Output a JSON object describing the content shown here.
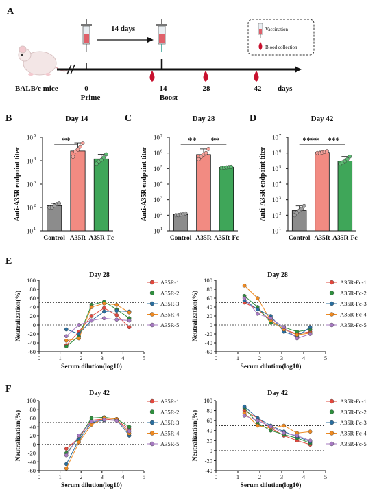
{
  "panel_a": {
    "letter": "A",
    "mouse_label": "BALB/c mice",
    "interval_label": "14 days",
    "days_unit": "days",
    "timepoints": [
      {
        "day": "0",
        "event": "Prime",
        "syringe": true,
        "blood": false
      },
      {
        "day": "14",
        "event": "Boost",
        "syringe": true,
        "blood": true
      },
      {
        "day": "28",
        "event": "",
        "syringe": false,
        "blood": true
      },
      {
        "day": "42",
        "event": "",
        "syringe": false,
        "blood": true
      }
    ],
    "pre_prime_blood": true,
    "legend": {
      "vaccination": "Vaccination",
      "blood": "Blood collection"
    }
  },
  "colors": {
    "control": "#8c8c8c",
    "a35r": "#f28b82",
    "a35rfc": "#3fa659",
    "s1": "#e2483d",
    "s2": "#2f8f3e",
    "s3": "#2a6e9e",
    "s4": "#ee8a22",
    "s5": "#a77ac2",
    "blood": "#c8102e"
  },
  "chart_data": [
    {
      "type": "bar",
      "panel": "B",
      "title": "Day 14",
      "ylabel": "Anti-A35R endpoint titer",
      "log_y": true,
      "ylim_exp": [
        1,
        5
      ],
      "ytick_labels": [
        "10",
        "10",
        "10",
        "10",
        "10"
      ],
      "ytick_exps": [
        "1",
        "2",
        "3",
        "4",
        "5"
      ],
      "categories": [
        "Control",
        "A35R",
        "A35R-Fc"
      ],
      "values": [
        120,
        26000,
        12000
      ],
      "points": [
        [
          100,
          100,
          120,
          140,
          150
        ],
        [
          15000,
          25000,
          30000,
          40000,
          58000
        ],
        [
          7500,
          9500,
          11000,
          14000,
          19000
        ]
      ],
      "significance": [
        {
          "from": 0,
          "to": 1,
          "label": "**"
        }
      ]
    },
    {
      "type": "bar",
      "panel": "C",
      "title": "Day 28",
      "ylabel": "Anti-A35R endpoint titer",
      "log_y": true,
      "ylim_exp": [
        1,
        7
      ],
      "ytick_labels": [
        "10",
        "10",
        "10",
        "10",
        "10",
        "10",
        "10"
      ],
      "ytick_exps": [
        "1",
        "2",
        "3",
        "4",
        "5",
        "6",
        "7"
      ],
      "categories": [
        "Control",
        "A35R",
        "A35R-Fc"
      ],
      "values": [
        110,
        800000,
        120000
      ],
      "points": [
        [
          100,
          100,
          110,
          120,
          130
        ],
        [
          400000,
          600000,
          800000,
          1000000,
          1800000
        ],
        [
          110000,
          115000,
          120000,
          125000,
          130000
        ]
      ],
      "significance": [
        {
          "from": 0,
          "to": 1,
          "label": "**"
        },
        {
          "from": 1,
          "to": 2,
          "label": "**"
        }
      ]
    },
    {
      "type": "bar",
      "panel": "D",
      "title": "Day 42",
      "ylabel": "Anti-A35R endpoint titer",
      "log_y": true,
      "ylim_exp": [
        1,
        7
      ],
      "ytick_labels": [
        "10",
        "10",
        "10",
        "10",
        "10",
        "10",
        "10"
      ],
      "ytick_exps": [
        "1",
        "2",
        "3",
        "4",
        "5",
        "6",
        "7"
      ],
      "categories": [
        "Control",
        "A35R",
        "A35R"
      ],
      "cat_suffix": [
        "",
        "",
        "-Fc"
      ],
      "values": [
        200,
        1100000,
        300000
      ],
      "points": [
        [
          100,
          150,
          200,
          250,
          400
        ],
        [
          1000000,
          1000000,
          1100000,
          1200000,
          1300000
        ],
        [
          200000,
          250000,
          300000,
          400000,
          600000
        ]
      ],
      "significance": [
        {
          "from": 0,
          "to": 1,
          "label": "****"
        },
        {
          "from": 1,
          "to": 2,
          "label": "***"
        }
      ]
    },
    {
      "type": "scatter",
      "panel": "E",
      "title": "Day 28",
      "xlabel": "Serum dilution(log10)",
      "ylabel": "Neutralization(%)",
      "xlim": [
        0,
        5
      ],
      "ylim": [
        -60,
        100
      ],
      "yticks": [
        -60,
        -40,
        -20,
        0,
        20,
        40,
        60,
        80,
        100
      ],
      "xticks": [
        0,
        1,
        2,
        3,
        4,
        5
      ],
      "hlines": [
        50,
        0
      ],
      "x": [
        1.3,
        1.9,
        2.5,
        3.1,
        3.7,
        4.3
      ],
      "series": [
        {
          "name": "A35R-1",
          "values": [
            -45,
            -15,
            20,
            38,
            22,
            -5
          ]
        },
        {
          "name": "A35R-2",
          "values": [
            -48,
            -25,
            45,
            52,
            35,
            15
          ]
        },
        {
          "name": "A35R-3",
          "values": [
            -10,
            -20,
            10,
            30,
            32,
            30
          ]
        },
        {
          "name": "A35R-4",
          "values": [
            -35,
            -30,
            40,
            48,
            45,
            28
          ]
        },
        {
          "name": "A35R-5",
          "values": [
            -25,
            0,
            10,
            15,
            12,
            10
          ]
        }
      ]
    },
    {
      "type": "scatter",
      "panel": "E",
      "title": "Day 28",
      "xlabel": "Serum dilution(log10)",
      "ylabel": "Neutralization(%)",
      "xlim": [
        0,
        5
      ],
      "ylim": [
        -60,
        100
      ],
      "yticks": [
        -60,
        -40,
        -20,
        0,
        20,
        40,
        60,
        80,
        100
      ],
      "xticks": [
        0,
        1,
        2,
        3,
        4,
        5
      ],
      "hlines": [
        50,
        0
      ],
      "x": [
        1.3,
        1.9,
        2.5,
        3.1,
        3.7,
        4.3
      ],
      "series": [
        {
          "name": "A35R-Fc-1",
          "values": [
            50,
            35,
            10,
            -10,
            -20,
            -15
          ]
        },
        {
          "name": "A35R-Fc-2",
          "values": [
            65,
            40,
            5,
            -5,
            -15,
            -10
          ]
        },
        {
          "name": "A35R-Fc-3",
          "values": [
            55,
            35,
            20,
            -15,
            -25,
            -5
          ]
        },
        {
          "name": "A35R-Fc-4",
          "values": [
            88,
            60,
            10,
            -10,
            -22,
            -18
          ]
        },
        {
          "name": "A35R-Fc-5",
          "values": [
            60,
            25,
            15,
            -5,
            -30,
            -20
          ]
        }
      ]
    },
    {
      "type": "scatter",
      "panel": "F",
      "title": "Day 42",
      "xlabel": "Serum dilution(log10)",
      "ylabel": "Neutralization(%)",
      "xlim": [
        0,
        5
      ],
      "ylim": [
        -60,
        100
      ],
      "yticks": [
        -60,
        -40,
        -20,
        0,
        20,
        40,
        60,
        80,
        100
      ],
      "xticks": [
        0,
        1,
        2,
        3,
        4,
        5
      ],
      "hlines": [
        50,
        0
      ],
      "x": [
        1.3,
        1.9,
        2.5,
        3.1,
        3.7,
        4.3
      ],
      "series": [
        {
          "name": "A35R-1",
          "values": [
            -10,
            15,
            55,
            58,
            55,
            35
          ]
        },
        {
          "name": "A35R-2",
          "values": [
            -20,
            15,
            60,
            62,
            58,
            40
          ]
        },
        {
          "name": "A35R-3",
          "values": [
            -45,
            10,
            50,
            55,
            56,
            20
          ]
        },
        {
          "name": "A35R-4",
          "values": [
            -55,
            5,
            45,
            60,
            58,
            25
          ]
        },
        {
          "name": "A35R-5",
          "values": [
            -25,
            20,
            52,
            56,
            54,
            30
          ]
        }
      ]
    },
    {
      "type": "scatter",
      "panel": "F",
      "title": "Day 42",
      "xlabel": "Serum dilution(log10)",
      "ylabel": "Neutralization(%)",
      "xlim": [
        0,
        5
      ],
      "ylim": [
        -40,
        100
      ],
      "yticks": [
        -40,
        -20,
        0,
        20,
        40,
        60,
        80,
        100
      ],
      "xticks": [
        0,
        1,
        2,
        3,
        4,
        5
      ],
      "hlines": [
        50,
        0
      ],
      "x": [
        1.3,
        1.9,
        2.5,
        3.1,
        3.7,
        4.3
      ],
      "series": [
        {
          "name": "A35R-Fc-1",
          "values": [
            80,
            65,
            45,
            30,
            20,
            12
          ]
        },
        {
          "name": "A35R-Fc-2",
          "values": [
            85,
            55,
            40,
            32,
            25,
            15
          ]
        },
        {
          "name": "A35R-Fc-3",
          "values": [
            88,
            65,
            50,
            38,
            28,
            18
          ]
        },
        {
          "name": "A35R-Fc-4",
          "values": [
            75,
            50,
            45,
            50,
            35,
            38
          ]
        },
        {
          "name": "A35R-Fc-5",
          "values": [
            70,
            60,
            48,
            35,
            30,
            20
          ]
        }
      ]
    }
  ],
  "panel_letters": [
    "B",
    "C",
    "D",
    "E",
    "F"
  ]
}
